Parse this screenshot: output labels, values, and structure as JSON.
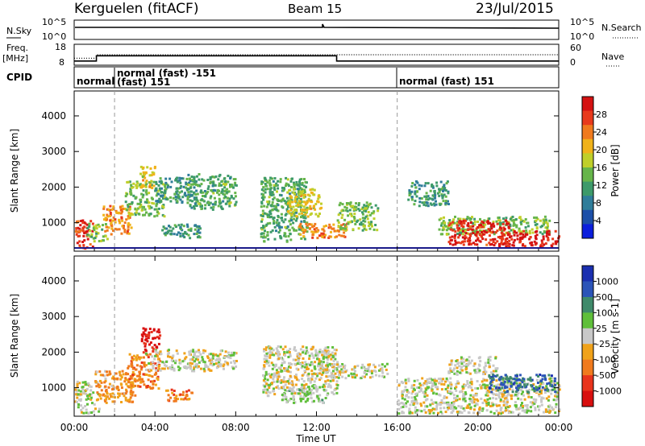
{
  "header": {
    "station": "Kerguelen (fitACF)",
    "beam": "Beam 15",
    "date": "23/Jul/2015"
  },
  "top_panels": {
    "nsky_label": "N.Sky",
    "nsky_ticks": [
      "10^5",
      "10^0"
    ],
    "nsearch_label": "N.Search",
    "nsearch_ticks": [
      "10^5",
      "10^0"
    ],
    "freq_label": "Freq.",
    "freq_unit": "[MHz]",
    "freq_ticks": [
      "18",
      "8"
    ],
    "nave_label": "Nave",
    "nave_ticks": [
      "60",
      "0"
    ],
    "cpid_label": "CPID",
    "cpid_segments": [
      {
        "label": "normal",
        "start_hr": 0
      },
      {
        "label": "normal (fast) -151",
        "start_hr": 2.0
      },
      {
        "label": "(fast) 151",
        "start_hr": 2.0
      },
      {
        "label": "normal (fast) 151",
        "start_hr": 16.0
      }
    ],
    "freq_series": {
      "x": [
        0,
        1.1,
        1.1,
        13.0,
        13.0,
        24
      ],
      "y": [
        10,
        10,
        12.5,
        12.5,
        10,
        10
      ]
    },
    "nave_series": {
      "x": [
        0,
        1.1,
        1.1,
        13.0,
        13.0,
        24
      ],
      "y": [
        20,
        20,
        30,
        30,
        30,
        30
      ]
    }
  },
  "x_axis": {
    "label": "Time UT",
    "ticks": [
      "00:00",
      "04:00",
      "08:00",
      "12:00",
      "16:00",
      "20:00",
      "00:00"
    ],
    "tick_hours": [
      0,
      4,
      8,
      12,
      16,
      20,
      24
    ]
  },
  "power_panel": {
    "ylabel": "Slant Range [km]",
    "yticks": [
      "4000",
      "3000",
      "2000",
      "1000"
    ],
    "colorbar_label": "Power [dB]",
    "colorbar_ticks": [
      "28",
      "24",
      "20",
      "16",
      "12",
      "8",
      "4"
    ],
    "colors": [
      "#0b1edc",
      "#1c4fa8",
      "#2f7d9a",
      "#3d9a6a",
      "#66b54a",
      "#bfcf2a",
      "#f0b21a",
      "#f07a1e",
      "#e83a1c",
      "#d41212"
    ]
  },
  "velocity_panel": {
    "ylabel": "Slant Range [km]",
    "yticks": [
      "4000",
      "3000",
      "2000",
      "1000"
    ],
    "colorbar_label": "Velocity [m s-1]",
    "colorbar_ticks": [
      "1000",
      "500",
      "100",
      "25",
      "-25",
      "-100",
      "-500",
      "-1000"
    ],
    "colors": [
      "#1a2fb0",
      "#2b54b8",
      "#3f8a6a",
      "#5fbf3a",
      "#c8c8c8",
      "#f0a21a",
      "#f07a1e",
      "#e8341c",
      "#d80f0f"
    ]
  },
  "chart_data": [
    {
      "type": "heatmap",
      "title": "Power",
      "xlabel": "Time UT",
      "ylabel": "Slant Range [km]",
      "xlim": [
        0,
        24
      ],
      "ylim": [
        200,
        4700
      ],
      "colorbar": {
        "label": "Power [dB]",
        "range": [
          0,
          30
        ]
      },
      "patches": [
        {
          "t0": 0.0,
          "t1": 0.9,
          "r0": 300,
          "r1": 1100,
          "value": 26
        },
        {
          "t0": 0.6,
          "t1": 1.6,
          "r0": 500,
          "r1": 1000,
          "value": 14
        },
        {
          "t0": 1.4,
          "t1": 2.8,
          "r0": 700,
          "r1": 1500,
          "value": 22
        },
        {
          "t0": 2.5,
          "t1": 4.5,
          "r0": 1200,
          "r1": 2200,
          "value": 14
        },
        {
          "t0": 3.2,
          "t1": 4.0,
          "r0": 2000,
          "r1": 2600,
          "value": 18
        },
        {
          "t0": 4.0,
          "t1": 6.0,
          "r0": 1600,
          "r1": 2300,
          "value": 10
        },
        {
          "t0": 5.5,
          "t1": 8.0,
          "r0": 1400,
          "r1": 2400,
          "value": 12
        },
        {
          "t0": 4.3,
          "t1": 6.2,
          "r0": 600,
          "r1": 1000,
          "value": 10
        },
        {
          "t0": 9.2,
          "t1": 11.5,
          "r0": 500,
          "r1": 2300,
          "value": 12
        },
        {
          "t0": 10.5,
          "t1": 12.2,
          "r0": 1200,
          "r1": 2000,
          "value": 18
        },
        {
          "t0": 11.0,
          "t1": 13.5,
          "r0": 600,
          "r1": 1000,
          "value": 22
        },
        {
          "t0": 13.0,
          "t1": 15.0,
          "r0": 800,
          "r1": 1600,
          "value": 14
        },
        {
          "t0": 16.5,
          "t1": 18.5,
          "r0": 1500,
          "r1": 2200,
          "value": 10
        },
        {
          "t0": 18.0,
          "t1": 23.5,
          "r0": 700,
          "r1": 1200,
          "value": 14
        },
        {
          "t0": 18.5,
          "t1": 21.5,
          "r0": 400,
          "r1": 1100,
          "value": 27
        },
        {
          "t0": 21.0,
          "t1": 24.0,
          "r0": 350,
          "r1": 800,
          "value": 28
        }
      ]
    },
    {
      "type": "heatmap",
      "title": "Velocity",
      "xlabel": "Time UT",
      "ylabel": "Slant Range [km]",
      "xlim": [
        0,
        24
      ],
      "ylim": [
        200,
        4700
      ],
      "colorbar": {
        "label": "Velocity [m s-1]",
        "range": [
          -1000,
          1000
        ]
      },
      "patches": [
        {
          "t0": 0.0,
          "t1": 1.2,
          "r0": 300,
          "r1": 1200,
          "value": 0
        },
        {
          "t0": 1.0,
          "t1": 3.0,
          "r0": 600,
          "r1": 1500,
          "value": -300
        },
        {
          "t0": 2.6,
          "t1": 4.2,
          "r0": 1000,
          "r1": 2000,
          "value": -400
        },
        {
          "t0": 3.3,
          "t1": 4.2,
          "r0": 2000,
          "r1": 2700,
          "value": -900
        },
        {
          "t0": 3.5,
          "t1": 8.0,
          "r0": 1500,
          "r1": 2100,
          "value": 0
        },
        {
          "t0": 4.5,
          "t1": 5.8,
          "r0": 650,
          "r1": 1000,
          "value": -400
        },
        {
          "t0": 9.3,
          "t1": 13.0,
          "r0": 800,
          "r1": 2200,
          "value": 0
        },
        {
          "t0": 10.2,
          "t1": 12.5,
          "r0": 600,
          "r1": 1100,
          "value": 150
        },
        {
          "t0": 12.0,
          "t1": 15.5,
          "r0": 1300,
          "r1": 1700,
          "value": 0
        },
        {
          "t0": 16.0,
          "t1": 24.0,
          "r0": 300,
          "r1": 1300,
          "value": 0
        },
        {
          "t0": 18.5,
          "t1": 21.0,
          "r0": 1400,
          "r1": 1900,
          "value": 0
        },
        {
          "t0": 20.5,
          "t1": 23.8,
          "r0": 900,
          "r1": 1400,
          "value": 600
        }
      ]
    }
  ]
}
